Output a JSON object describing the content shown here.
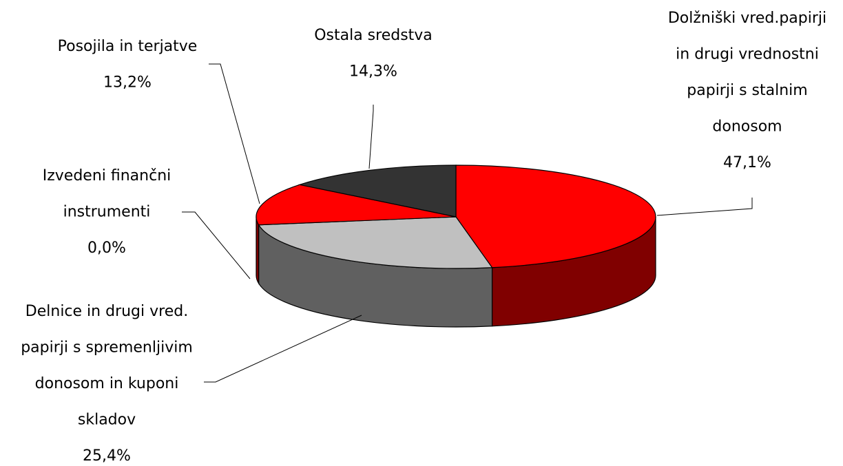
{
  "chart_data": {
    "type": "pie",
    "style": "3d",
    "legend": "none",
    "slices": [
      {
        "label_lines": [
          "Dolžniški vred.papirji",
          "in drugi vrednostni",
          "papirji s stalnim",
          "donosom"
        ],
        "value": 47.1,
        "value_label": "47,1%",
        "color": "#ff0000",
        "side_color": "#800000"
      },
      {
        "label_lines": [
          "Delnice in drugi vred.",
          "papirji s spremenljivim",
          "donosom in kuponi",
          "skladov"
        ],
        "value": 25.4,
        "value_label": "25,4%",
        "color": "#c0c0c0",
        "side_color": "#606060"
      },
      {
        "label_lines": [
          "Izvedeni finančni",
          "instrumenti"
        ],
        "value": 0.0,
        "value_label": "0,0%",
        "color": "#ffffff",
        "side_color": "#808080"
      },
      {
        "label_lines": [
          "Posojila in terjatve"
        ],
        "value": 13.2,
        "value_label": "13,2%",
        "color": "#ff0000",
        "side_color": "#800000"
      },
      {
        "label_lines": [
          "Ostala sredstva"
        ],
        "value": 14.3,
        "value_label": "14,3%",
        "color": "#333333",
        "side_color": "#1a1a1a"
      }
    ]
  }
}
